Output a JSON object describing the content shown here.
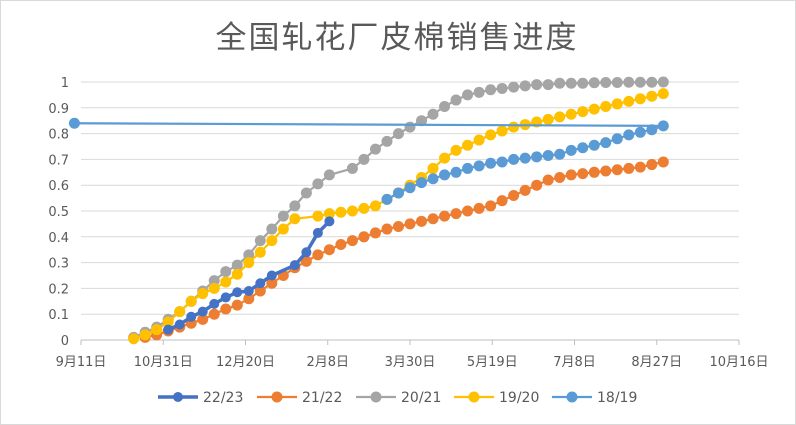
{
  "chart_data": {
    "type": "line",
    "title": "全国轧花厂皮棉销售进度",
    "xlabel": "",
    "ylabel": "",
    "x_axis": {
      "min": "9-11",
      "max": "10-16 (+1y)",
      "ticks": [
        "9月11日",
        "10月31日",
        "12月20日",
        "2月8日",
        "3月30日",
        "5月19日",
        "7月8日",
        "8月27日",
        "10月16日"
      ]
    },
    "y_axis": {
      "ylim": [
        0,
        1
      ],
      "ticks": [
        "0",
        "0.1",
        "0.2",
        "0.3",
        "0.4",
        "0.5",
        "0.6",
        "0.7",
        "0.8",
        "0.9",
        "1"
      ]
    },
    "grid": true,
    "legend_position": "bottom",
    "series": [
      {
        "name": "22/23",
        "color": "#4472C4",
        "marker_style": "large",
        "points": [
          [
            "11-03",
            0.04
          ],
          [
            "11-10",
            0.06
          ],
          [
            "11-17",
            0.09
          ],
          [
            "11-24",
            0.11
          ],
          [
            "12-01",
            0.14
          ],
          [
            "12-08",
            0.165
          ],
          [
            "12-15",
            0.185
          ],
          [
            "12-22",
            0.19
          ],
          [
            "12-29",
            0.22
          ],
          [
            "01-05",
            0.25
          ],
          [
            "01-19",
            0.29
          ],
          [
            "01-26",
            0.34
          ],
          [
            "02-02",
            0.415
          ],
          [
            "02-09",
            0.46
          ]
        ]
      },
      {
        "name": "21/22",
        "color": "#ED7D31",
        "marker_style": "normal",
        "points": [
          [
            "10-20",
            0.01
          ],
          [
            "10-27",
            0.02
          ],
          [
            "11-03",
            0.035
          ],
          [
            "11-10",
            0.05
          ],
          [
            "11-17",
            0.065
          ],
          [
            "11-24",
            0.08
          ],
          [
            "12-01",
            0.1
          ],
          [
            "12-08",
            0.12
          ],
          [
            "12-15",
            0.135
          ],
          [
            "12-22",
            0.16
          ],
          [
            "12-29",
            0.19
          ],
          [
            "01-05",
            0.22
          ],
          [
            "01-12",
            0.25
          ],
          [
            "01-19",
            0.28
          ],
          [
            "01-26",
            0.305
          ],
          [
            "02-02",
            0.33
          ],
          [
            "02-09",
            0.35
          ],
          [
            "02-16",
            0.37
          ],
          [
            "02-23",
            0.385
          ],
          [
            "03-02",
            0.4
          ],
          [
            "03-09",
            0.415
          ],
          [
            "03-16",
            0.43
          ],
          [
            "03-23",
            0.44
          ],
          [
            "03-30",
            0.45
          ],
          [
            "04-06",
            0.46
          ],
          [
            "04-13",
            0.47
          ],
          [
            "04-20",
            0.48
          ],
          [
            "04-27",
            0.49
          ],
          [
            "05-04",
            0.5
          ],
          [
            "05-11",
            0.51
          ],
          [
            "05-18",
            0.52
          ],
          [
            "05-25",
            0.54
          ],
          [
            "06-01",
            0.56
          ],
          [
            "06-08",
            0.58
          ],
          [
            "06-15",
            0.6
          ],
          [
            "06-22",
            0.62
          ],
          [
            "06-29",
            0.63
          ],
          [
            "07-06",
            0.64
          ],
          [
            "07-13",
            0.645
          ],
          [
            "07-20",
            0.65
          ],
          [
            "07-27",
            0.655
          ],
          [
            "08-03",
            0.66
          ],
          [
            "08-10",
            0.665
          ],
          [
            "08-17",
            0.67
          ],
          [
            "08-24",
            0.68
          ],
          [
            "08-31",
            0.69
          ]
        ]
      },
      {
        "name": "20/21",
        "color": "#A5A5A5",
        "marker_style": "normal",
        "points": [
          [
            "10-13",
            0.01
          ],
          [
            "10-20",
            0.03
          ],
          [
            "10-27",
            0.05
          ],
          [
            "11-03",
            0.08
          ],
          [
            "11-10",
            0.11
          ],
          [
            "11-17",
            0.15
          ],
          [
            "11-24",
            0.19
          ],
          [
            "12-01",
            0.23
          ],
          [
            "12-08",
            0.265
          ],
          [
            "12-15",
            0.29
          ],
          [
            "12-22",
            0.33
          ],
          [
            "12-29",
            0.385
          ],
          [
            "01-05",
            0.43
          ],
          [
            "01-12",
            0.48
          ],
          [
            "01-19",
            0.52
          ],
          [
            "01-26",
            0.57
          ],
          [
            "02-02",
            0.605
          ],
          [
            "02-09",
            0.64
          ],
          [
            "02-23",
            0.665
          ],
          [
            "03-02",
            0.7
          ],
          [
            "03-09",
            0.74
          ],
          [
            "03-16",
            0.77
          ],
          [
            "03-23",
            0.8
          ],
          [
            "03-30",
            0.825
          ],
          [
            "04-06",
            0.85
          ],
          [
            "04-13",
            0.875
          ],
          [
            "04-20",
            0.905
          ],
          [
            "04-27",
            0.93
          ],
          [
            "05-04",
            0.95
          ],
          [
            "05-11",
            0.96
          ],
          [
            "05-18",
            0.97
          ],
          [
            "05-25",
            0.975
          ],
          [
            "06-01",
            0.98
          ],
          [
            "06-08",
            0.985
          ],
          [
            "06-15",
            0.99
          ],
          [
            "06-22",
            0.99
          ],
          [
            "06-29",
            0.995
          ],
          [
            "07-06",
            0.995
          ],
          [
            "07-13",
            0.995
          ],
          [
            "07-20",
            0.997
          ],
          [
            "07-27",
            0.998
          ],
          [
            "08-03",
            0.998
          ],
          [
            "08-10",
            0.999
          ],
          [
            "08-17",
            0.999
          ],
          [
            "08-24",
            0.999
          ],
          [
            "08-31",
            1.0
          ]
        ]
      },
      {
        "name": "19/20",
        "color": "#FFC000",
        "marker_style": "normal",
        "points": [
          [
            "10-13",
            0.005
          ],
          [
            "10-20",
            0.02
          ],
          [
            "10-27",
            0.04
          ],
          [
            "11-03",
            0.07
          ],
          [
            "11-10",
            0.11
          ],
          [
            "11-17",
            0.15
          ],
          [
            "11-24",
            0.18
          ],
          [
            "12-01",
            0.2
          ],
          [
            "12-08",
            0.225
          ],
          [
            "12-15",
            0.255
          ],
          [
            "12-22",
            0.3
          ],
          [
            "12-29",
            0.34
          ],
          [
            "01-05",
            0.385
          ],
          [
            "01-12",
            0.43
          ],
          [
            "01-19",
            0.47
          ],
          [
            "02-02",
            0.48
          ],
          [
            "02-09",
            0.49
          ],
          [
            "02-16",
            0.495
          ],
          [
            "02-23",
            0.5
          ],
          [
            "03-02",
            0.51
          ],
          [
            "03-09",
            0.52
          ],
          [
            "03-16",
            0.545
          ],
          [
            "03-23",
            0.57
          ],
          [
            "03-30",
            0.6
          ],
          [
            "04-06",
            0.63
          ],
          [
            "04-13",
            0.665
          ],
          [
            "04-20",
            0.705
          ],
          [
            "04-27",
            0.735
          ],
          [
            "05-04",
            0.755
          ],
          [
            "05-11",
            0.775
          ],
          [
            "05-18",
            0.795
          ],
          [
            "05-25",
            0.81
          ],
          [
            "06-01",
            0.825
          ],
          [
            "06-08",
            0.835
          ],
          [
            "06-15",
            0.845
          ],
          [
            "06-22",
            0.855
          ],
          [
            "06-29",
            0.865
          ],
          [
            "07-06",
            0.875
          ],
          [
            "07-13",
            0.885
          ],
          [
            "07-20",
            0.895
          ],
          [
            "07-27",
            0.905
          ],
          [
            "08-03",
            0.915
          ],
          [
            "08-10",
            0.925
          ],
          [
            "08-17",
            0.935
          ],
          [
            "08-24",
            0.945
          ],
          [
            "08-31",
            0.955
          ]
        ]
      },
      {
        "name": "18/19",
        "color": "#5B9BD5",
        "marker_style": "normal",
        "points": [
          [
            "03-16",
            0.545
          ],
          [
            "03-23",
            0.57
          ],
          [
            "03-30",
            0.59
          ],
          [
            "04-06",
            0.61
          ],
          [
            "04-13",
            0.625
          ],
          [
            "04-20",
            0.64
          ],
          [
            "04-27",
            0.65
          ],
          [
            "05-04",
            0.665
          ],
          [
            "05-11",
            0.675
          ],
          [
            "05-18",
            0.685
          ],
          [
            "05-25",
            0.69
          ],
          [
            "06-01",
            0.7
          ],
          [
            "06-08",
            0.705
          ],
          [
            "06-15",
            0.71
          ],
          [
            "06-22",
            0.715
          ],
          [
            "06-29",
            0.72
          ],
          [
            "07-06",
            0.735
          ],
          [
            "07-13",
            0.745
          ],
          [
            "07-20",
            0.755
          ],
          [
            "07-27",
            0.765
          ],
          [
            "08-03",
            0.78
          ],
          [
            "08-10",
            0.795
          ],
          [
            "08-17",
            0.805
          ],
          [
            "08-24",
            0.815
          ],
          [
            "08-31",
            0.83
          ],
          [
            "09-07",
            0.84
          ]
        ]
      }
    ]
  }
}
